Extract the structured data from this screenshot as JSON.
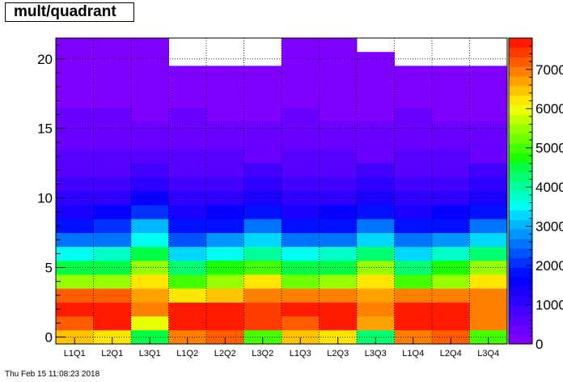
{
  "title": "mult/quadrant",
  "timestamp": "Thu Feb 15 11:08:23 2018",
  "palette": [
    "#7f00ff",
    "#6a00ff",
    "#5600ff",
    "#4200ff",
    "#2d00ff",
    "#1900ff",
    "#0500ff",
    "#000fff",
    "#0030ff",
    "#0052ff",
    "#0073ff",
    "#0095ff",
    "#00b6ff",
    "#00d8ff",
    "#00fff2",
    "#00ffc7",
    "#00ff9c",
    "#00ff71",
    "#00ff46",
    "#1aff00",
    "#44ff00",
    "#6eff00",
    "#98ff00",
    "#c2ff00",
    "#ecff00",
    "#ffe600",
    "#ffc400",
    "#ffa200",
    "#ff8000",
    "#ff5e00",
    "#ff3c00",
    "#ff1a00"
  ],
  "chart_data": {
    "type": "heatmap",
    "title": "mult/quadrant",
    "categories": [
      "L1Q1",
      "L2Q1",
      "L3Q1",
      "L1Q2",
      "L2Q2",
      "L3Q2",
      "L1Q3",
      "L2Q3",
      "L3Q3",
      "L1Q4",
      "L2Q4",
      "L3Q4"
    ],
    "ylim": [
      -0.5,
      21.5
    ],
    "yticks": [
      0,
      5,
      10,
      15,
      20
    ],
    "zlim": [
      0,
      7800
    ],
    "zticks": [
      0,
      1000,
      2000,
      3000,
      4000,
      5000,
      6000,
      7000
    ],
    "zticklabels": [
      "0",
      "1000",
      "2000",
      "3000",
      "4000",
      "5000",
      "6000",
      "7000"
    ],
    "grid": true,
    "rows": [
      {
        "y": 0,
        "values": [
          6500,
          6200,
          4500,
          7000,
          7200,
          5000,
          6400,
          6200,
          4300,
          7000,
          7200,
          5000
        ]
      },
      {
        "y": 1,
        "values": [
          7300,
          7600,
          6000,
          7700,
          7700,
          7500,
          7300,
          7700,
          6800,
          7700,
          7700,
          7000
        ]
      },
      {
        "y": 2,
        "values": [
          7700,
          7700,
          7000,
          7700,
          7700,
          7500,
          7700,
          7700,
          7000,
          7700,
          7700,
          7000
        ]
      },
      {
        "y": 3,
        "values": [
          7100,
          7100,
          6700,
          6300,
          6500,
          7000,
          7000,
          7000,
          6800,
          6900,
          6900,
          7000
        ]
      },
      {
        "y": 4,
        "values": [
          5400,
          5600,
          6300,
          5000,
          5400,
          6100,
          5200,
          5400,
          6200,
          5100,
          5500,
          6200
        ]
      },
      {
        "y": 5,
        "values": [
          4400,
          4600,
          5600,
          4200,
          4700,
          5100,
          4500,
          4600,
          5400,
          4300,
          4800,
          5400
        ]
      },
      {
        "y": 6,
        "values": [
          3500,
          3700,
          4400,
          3300,
          3600,
          4100,
          3500,
          3700,
          4200,
          3400,
          3700,
          4200
        ]
      },
      {
        "y": 7,
        "values": [
          2500,
          2600,
          3500,
          2400,
          2700,
          3300,
          2500,
          2600,
          3300,
          2500,
          2700,
          3300
        ]
      },
      {
        "y": 8,
        "values": [
          1800,
          2000,
          3000,
          1800,
          1900,
          2500,
          1800,
          1900,
          2500,
          1800,
          1900,
          2500
        ]
      },
      {
        "y": 9,
        "values": [
          1400,
          1500,
          2100,
          1400,
          1500,
          1900,
          1400,
          1500,
          1900,
          1400,
          1500,
          1900
        ]
      },
      {
        "y": 10,
        "values": [
          1100,
          1100,
          1600,
          1000,
          1100,
          1400,
          1100,
          1100,
          1400,
          1000,
          1100,
          1400
        ]
      },
      {
        "y": 11,
        "values": [
          900,
          900,
          1200,
          800,
          900,
          1100,
          900,
          900,
          1100,
          800,
          900,
          1100
        ]
      },
      {
        "y": 12,
        "values": [
          700,
          700,
          900,
          700,
          700,
          800,
          700,
          700,
          800,
          700,
          700,
          800
        ]
      },
      {
        "y": 13,
        "values": [
          500,
          500,
          650,
          550,
          550,
          450,
          550,
          550,
          450,
          550,
          550,
          450
        ]
      },
      {
        "y": 14,
        "values": [
          450,
          450,
          300,
          450,
          450,
          300,
          400,
          450,
          300,
          400,
          450,
          300
        ]
      },
      {
        "y": 15,
        "values": [
          400,
          300,
          250,
          400,
          250,
          250,
          350,
          250,
          250,
          350,
          250,
          250
        ]
      },
      {
        "y": 16,
        "values": [
          350,
          250,
          200,
          300,
          200,
          200,
          250,
          200,
          200,
          250,
          200,
          200
        ]
      },
      {
        "y": 17,
        "values": [
          200,
          200,
          200,
          200,
          200,
          200,
          200,
          200,
          200,
          200,
          200,
          200
        ]
      },
      {
        "y": 18,
        "values": [
          200,
          200,
          200,
          200,
          200,
          200,
          200,
          200,
          200,
          200,
          200,
          200
        ]
      },
      {
        "y": 19,
        "values": [
          150,
          150,
          150,
          150,
          150,
          150,
          150,
          150,
          150,
          150,
          150,
          150
        ]
      },
      {
        "y": 20,
        "values": [
          150,
          150,
          150,
          null,
          null,
          null,
          150,
          150,
          150,
          null,
          null,
          null
        ]
      },
      {
        "y": 21,
        "values": [
          150,
          150,
          150,
          null,
          null,
          null,
          150,
          150,
          null,
          null,
          null,
          null
        ]
      }
    ]
  }
}
